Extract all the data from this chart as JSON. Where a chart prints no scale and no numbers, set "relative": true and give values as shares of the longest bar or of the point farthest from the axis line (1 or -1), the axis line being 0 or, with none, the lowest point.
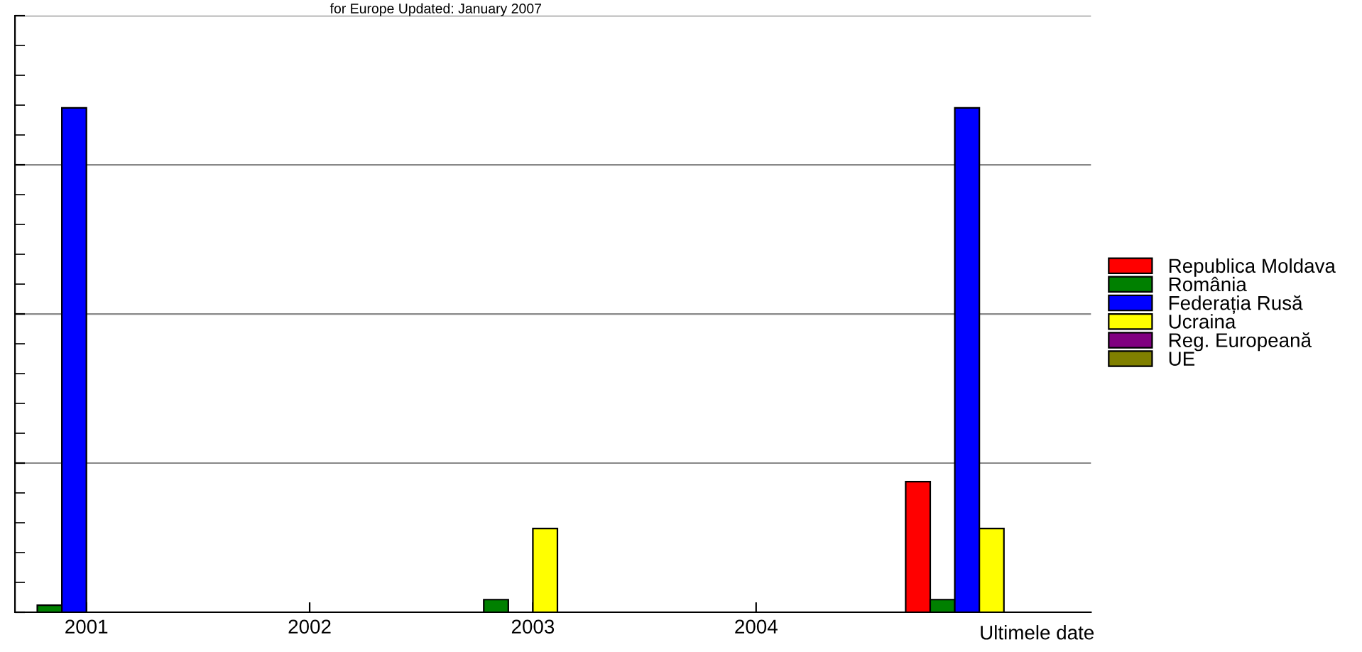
{
  "chart_data": {
    "type": "bar",
    "title": "for Europe Updated: January 2007",
    "categories": [
      "2001",
      "2002",
      "2003",
      "2004",
      "Ultimele date"
    ],
    "relative": true,
    "grid": "y",
    "legend": "right",
    "series": [
      {
        "name": "Republica Moldava",
        "color": "#ff0000",
        "values": [
          null,
          null,
          null,
          null,
          0.259
        ]
      },
      {
        "name": "România",
        "color": "#008000",
        "values": [
          0.014,
          null,
          0.025,
          null,
          0.025
        ]
      },
      {
        "name": "Federația Rusă",
        "color": "#0000ff",
        "values": [
          1,
          null,
          null,
          null,
          1
        ]
      },
      {
        "name": "Ucraina",
        "color": "#ffff00",
        "values": [
          null,
          null,
          0.166,
          null,
          0.166
        ]
      },
      {
        "name": "Reg. Europeană",
        "color": "#800080",
        "values": [
          null,
          null,
          null,
          null,
          null
        ]
      },
      {
        "name": "UE",
        "color": "#808000",
        "values": [
          null,
          null,
          null,
          null,
          null
        ]
      }
    ]
  }
}
